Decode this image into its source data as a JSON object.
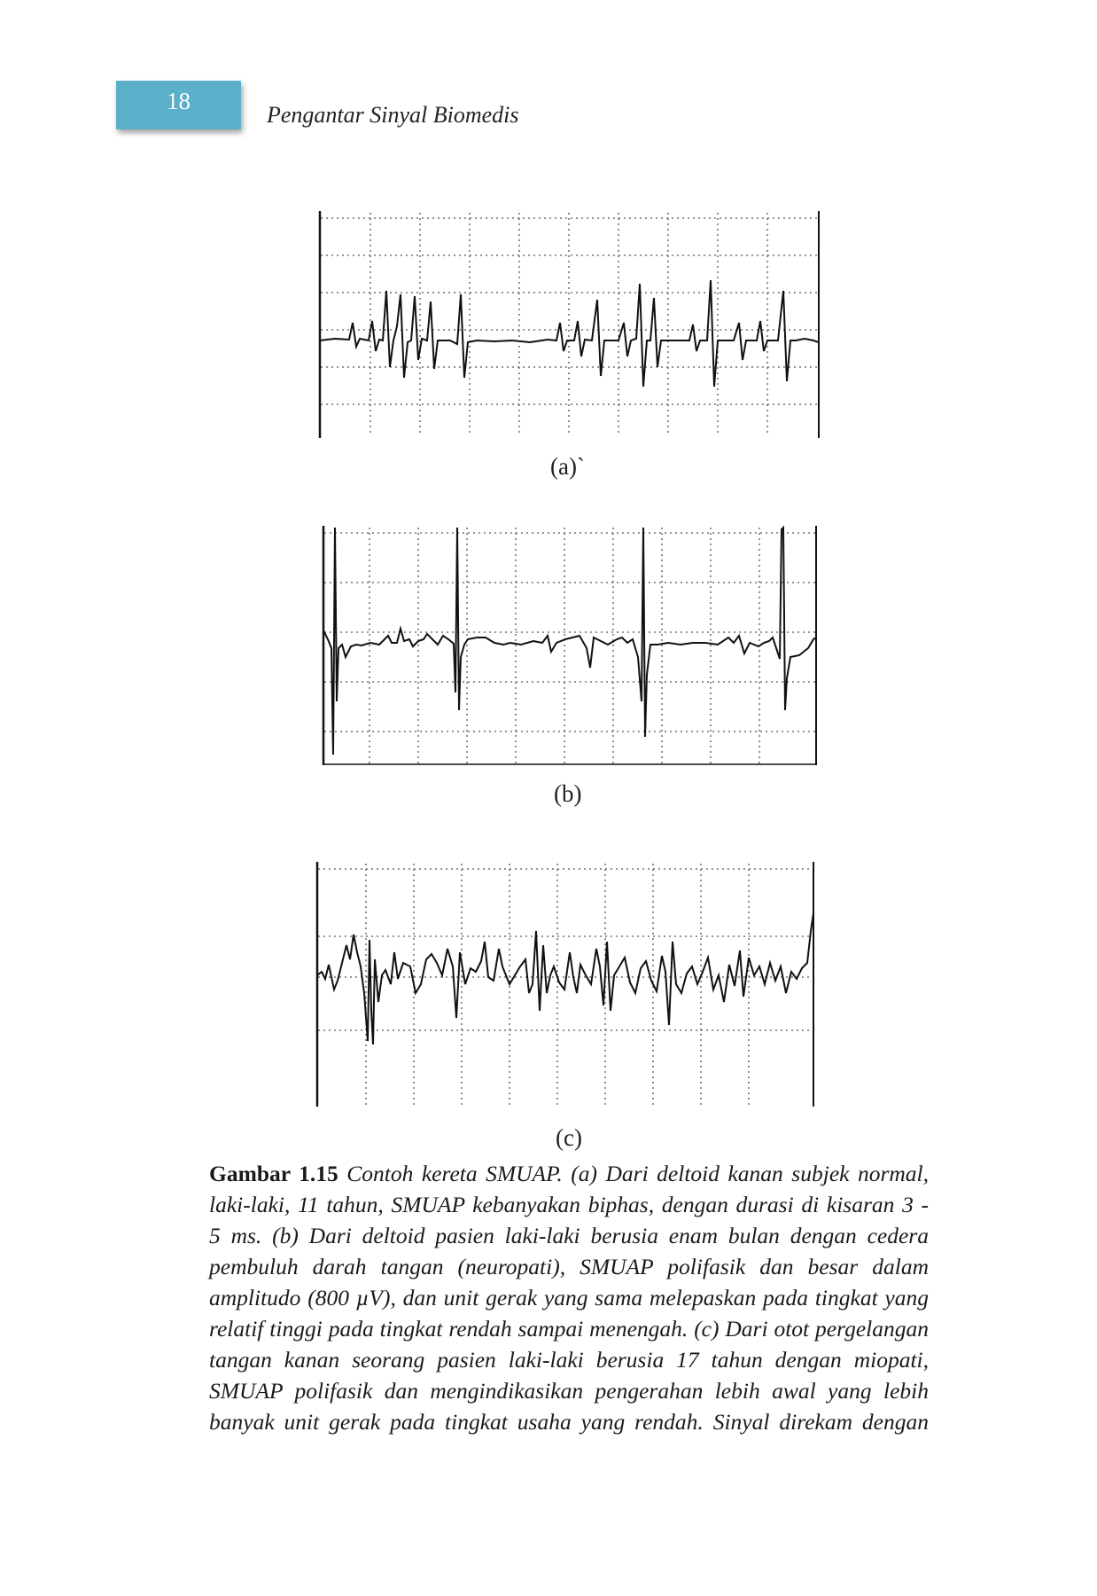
{
  "header": {
    "page_number": "18",
    "running_title": "Pengantar Sinyal Biomedis"
  },
  "figure": {
    "panels": [
      {
        "label": "(a)`"
      },
      {
        "label": "(b)"
      },
      {
        "label": "(c)"
      }
    ],
    "caption": {
      "number": "Gambar 1.15",
      "line1_rest": "Contoh kereta SMUAP. (a) Dari deltoid kanan subjek normal,",
      "lines": [
        "laki-laki, 11 tahun, SMUAP kebanyakan biphas, dengan durasi di kisaran 3 -",
        "5 ms. (b) Dari deltoid pasien laki-laki berusia enam bulan dengan cedera",
        "pembuluh darah tangan (neuropati), SMUAP polifasik dan besar dalam",
        "amplitudo (800 µV), dan unit gerak yang sama melepaskan pada tingkat yang",
        "relatif tinggi pada tingkat rendah sampai menengah. (c) Dari otot pergelangan",
        "tangan kanan seorang pasien laki-laki berusia 17 tahun dengan miopati,",
        "SMUAP polifasik dan mengindikasikan pengerahan lebih awal yang lebih",
        "banyak unit gerak pada tingkat usaha yang rendah. Sinyal direkam dengan"
      ]
    }
  }
}
